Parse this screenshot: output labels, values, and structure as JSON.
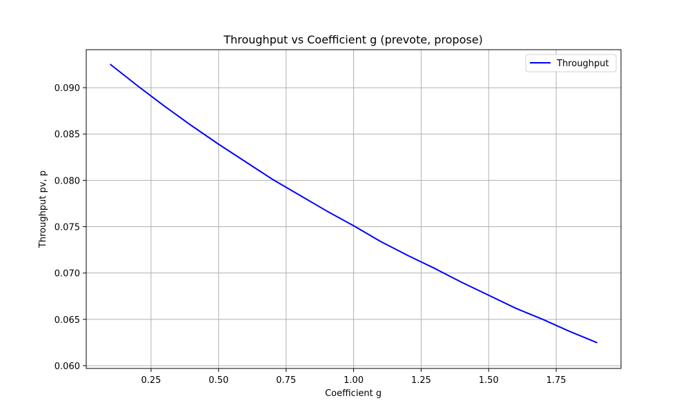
{
  "chart_data": {
    "type": "line",
    "title": "Throughput vs Coefficient g (prevote, propose)",
    "xlabel": "Coefficient g",
    "ylabel": "Throughput pv, p",
    "xlim": [
      0.01,
      1.99
    ],
    "ylim": [
      0.0597,
      0.0941
    ],
    "xticks": [
      0.25,
      0.5,
      0.75,
      1.0,
      1.25,
      1.5,
      1.75
    ],
    "xtick_labels": [
      "0.25",
      "0.50",
      "0.75",
      "1.00",
      "1.25",
      "1.50",
      "1.75"
    ],
    "yticks": [
      0.06,
      0.065,
      0.07,
      0.075,
      0.08,
      0.085,
      0.09
    ],
    "ytick_labels": [
      "0.060",
      "0.065",
      "0.070",
      "0.075",
      "0.080",
      "0.085",
      "0.090"
    ],
    "grid": true,
    "legend_position": "top-right",
    "series": [
      {
        "name": "Throughput",
        "color": "#0000ff",
        "x": [
          0.1,
          0.2,
          0.3,
          0.4,
          0.5,
          0.6,
          0.7,
          0.8,
          0.9,
          1.0,
          1.1,
          1.2,
          1.3,
          1.4,
          1.5,
          1.6,
          1.7,
          1.8,
          1.9
        ],
        "y": [
          0.0925,
          0.0902,
          0.088,
          0.0859,
          0.0839,
          0.082,
          0.0801,
          0.0784,
          0.0767,
          0.0751,
          0.0734,
          0.0719,
          0.0705,
          0.069,
          0.0676,
          0.0662,
          0.065,
          0.0637,
          0.0625
        ]
      }
    ]
  }
}
